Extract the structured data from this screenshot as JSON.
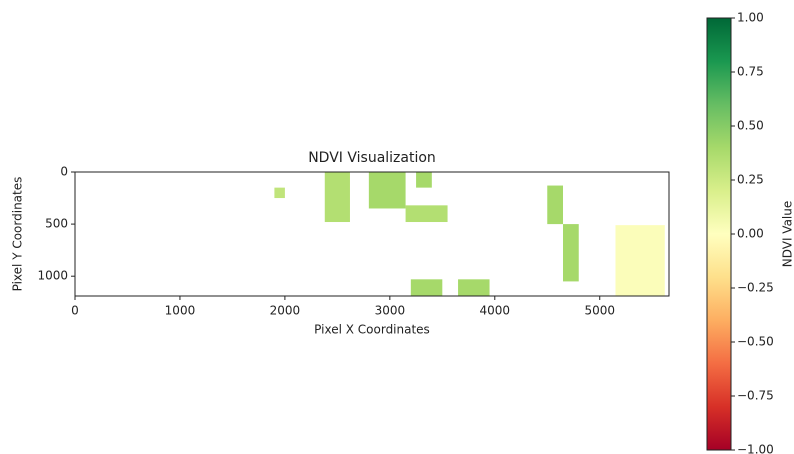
{
  "chart_data": {
    "type": "image",
    "title": "NDVI Visualization",
    "x_label": "Pixel X Coordinates",
    "y_label": "Pixel Y Coordinates",
    "xlim": [
      0,
      5660
    ],
    "ylim": [
      1190,
      0
    ],
    "xticks": [
      0,
      1000,
      2000,
      3000,
      4000,
      5000
    ],
    "yticks": [
      0,
      500,
      1000
    ],
    "regions": [
      {
        "x": [
          2380,
          2620
        ],
        "y": [
          0,
          480
        ],
        "value": 0.35
      },
      {
        "x": [
          2800,
          3150
        ],
        "y": [
          0,
          350
        ],
        "value": 0.4
      },
      {
        "x": [
          3250,
          3400
        ],
        "y": [
          0,
          150
        ],
        "value": 0.4
      },
      {
        "x": [
          3150,
          3550
        ],
        "y": [
          320,
          480
        ],
        "value": 0.35
      },
      {
        "x": [
          1900,
          2000
        ],
        "y": [
          150,
          250
        ],
        "value": 0.3
      },
      {
        "x": [
          4500,
          4650
        ],
        "y": [
          130,
          500
        ],
        "value": 0.4
      },
      {
        "x": [
          4650,
          4800
        ],
        "y": [
          500,
          1050
        ],
        "value": 0.4
      },
      {
        "x": [
          3200,
          3500
        ],
        "y": [
          1030,
          1190
        ],
        "value": 0.4
      },
      {
        "x": [
          3650,
          3950
        ],
        "y": [
          1030,
          1190
        ],
        "value": 0.4
      },
      {
        "x": [
          5150,
          5620
        ],
        "y": [
          510,
          1190
        ],
        "value": 0.02
      }
    ],
    "colorbar": {
      "label": "NDVI Value",
      "lim": [
        -1,
        1
      ],
      "ticks": [
        {
          "value": -1,
          "label": "−1.00"
        },
        {
          "value": -0.75,
          "label": "−0.75"
        },
        {
          "value": -0.5,
          "label": "−0.50"
        },
        {
          "value": -0.25,
          "label": "−0.25"
        },
        {
          "value": 0,
          "label": "0.00"
        },
        {
          "value": 0.25,
          "label": "0.25"
        },
        {
          "value": 0.5,
          "label": "0.50"
        },
        {
          "value": 0.75,
          "label": "0.75"
        },
        {
          "value": 1,
          "label": "1.00"
        }
      ],
      "colormap": [
        "#a50026",
        "#d73027",
        "#f46d43",
        "#fdae61",
        "#fee08b",
        "#ffffbf",
        "#d9ef8b",
        "#a6d96a",
        "#66bd63",
        "#1a9850",
        "#006837"
      ]
    }
  }
}
